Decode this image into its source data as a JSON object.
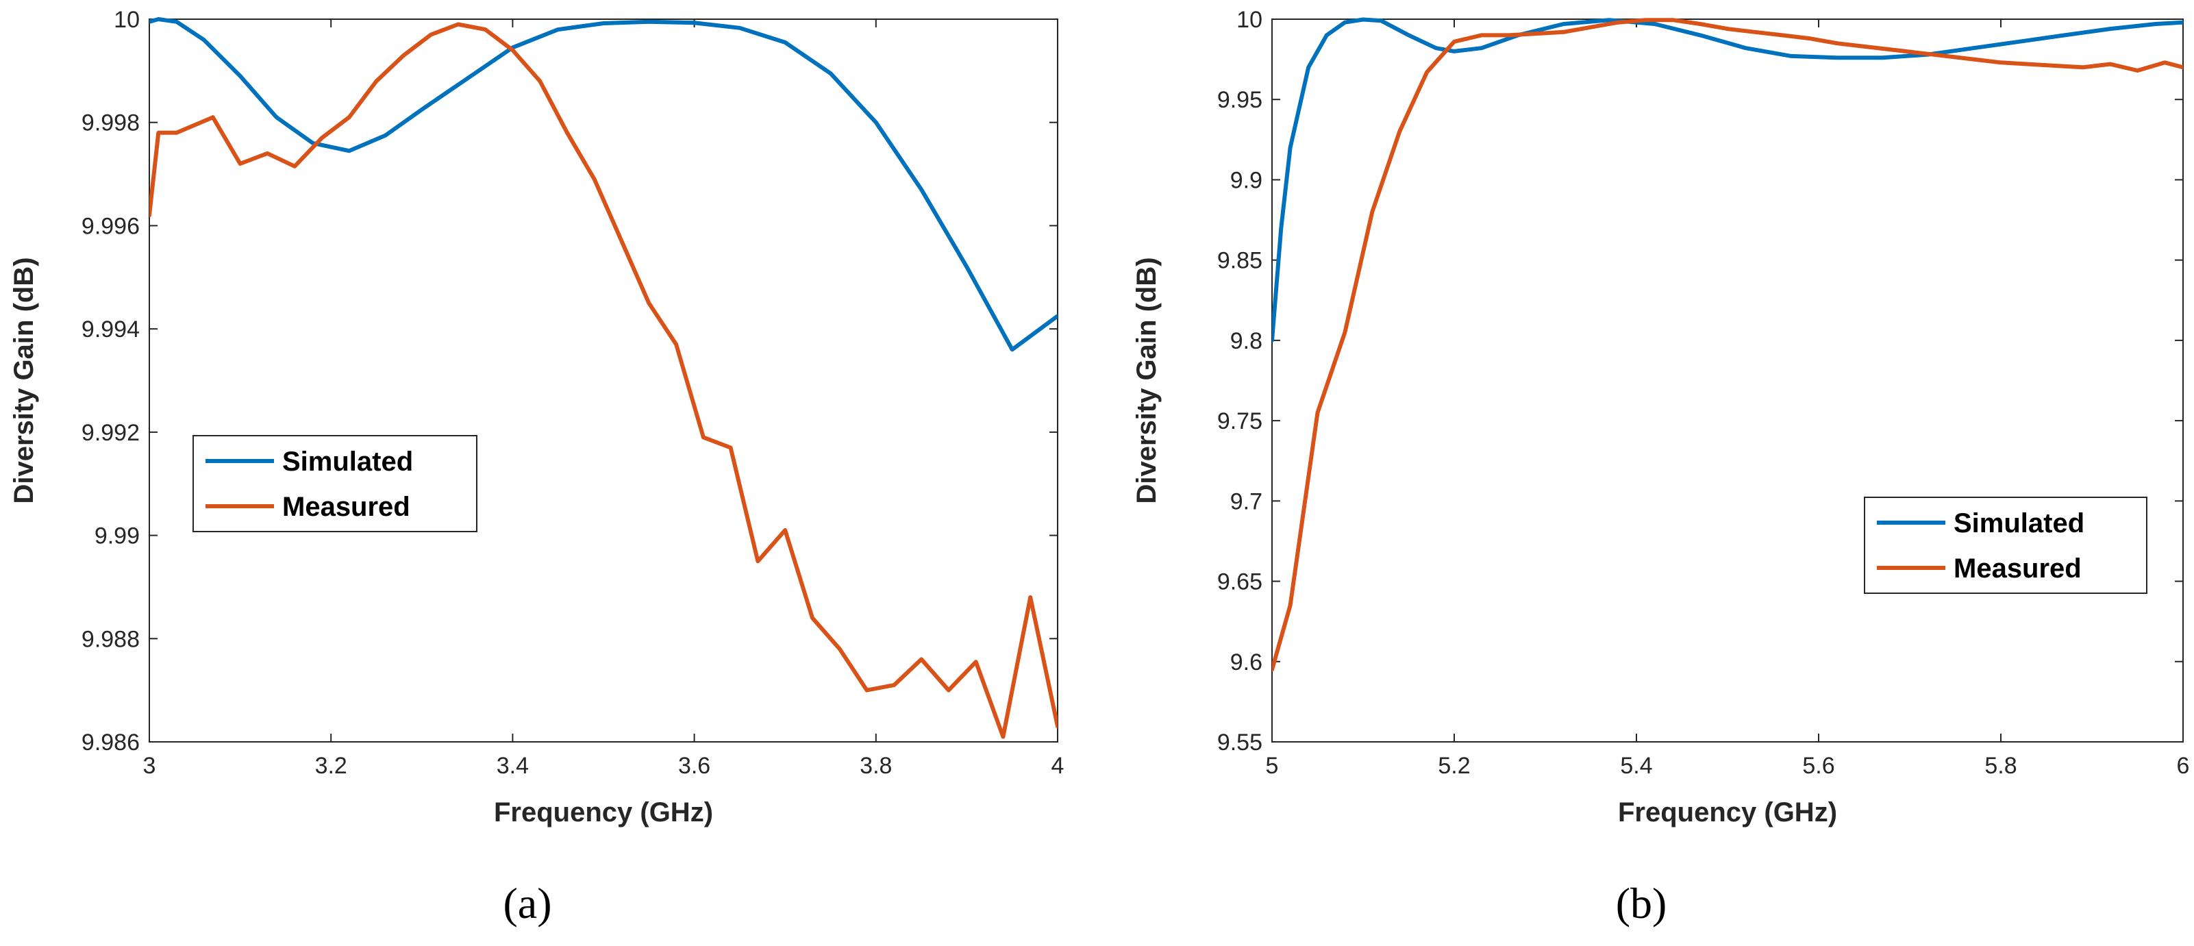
{
  "chart_data": [
    {
      "type": "line",
      "panel_label": "(a)",
      "xlabel": "Frequency (GHz)",
      "ylabel": "Diversity Gain (dB)",
      "xlim": [
        3,
        4
      ],
      "ylim": [
        9.986,
        10
      ],
      "xticks": [
        "3",
        "3.2",
        "3.4",
        "3.6",
        "3.8",
        "4"
      ],
      "yticks": [
        "9.986",
        "9.988",
        "9.99",
        "9.992",
        "9.994",
        "9.996",
        "9.998",
        "10"
      ],
      "legend": {
        "position": "middle-left",
        "entries": [
          "Simulated",
          "Measured"
        ]
      },
      "series": [
        {
          "name": "Simulated",
          "color": "#0072BD",
          "x": [
            3.0,
            3.01,
            3.03,
            3.06,
            3.1,
            3.14,
            3.18,
            3.22,
            3.26,
            3.3,
            3.35,
            3.4,
            3.45,
            3.5,
            3.55,
            3.6,
            3.65,
            3.7,
            3.75,
            3.8,
            3.85,
            3.9,
            3.95,
            4.0
          ],
          "y": [
            9.99995,
            10.0,
            9.99995,
            9.9996,
            9.9989,
            9.9981,
            9.9976,
            9.99745,
            9.99775,
            9.99825,
            9.99885,
            9.99945,
            9.9998,
            9.99992,
            9.99995,
            9.99993,
            9.99983,
            9.99955,
            9.99895,
            9.998,
            9.9967,
            9.9952,
            9.9936,
            9.99425
          ]
        },
        {
          "name": "Measured",
          "color": "#D95319",
          "x": [
            3.0,
            3.01,
            3.03,
            3.07,
            3.1,
            3.13,
            3.16,
            3.19,
            3.22,
            3.25,
            3.28,
            3.31,
            3.34,
            3.37,
            3.4,
            3.43,
            3.46,
            3.49,
            3.52,
            3.55,
            3.58,
            3.61,
            3.64,
            3.67,
            3.7,
            3.73,
            3.76,
            3.79,
            3.82,
            3.85,
            3.88,
            3.91,
            3.94,
            3.97,
            4.0
          ],
          "y": [
            9.9962,
            9.9978,
            9.9978,
            9.9981,
            9.9972,
            9.9974,
            9.99715,
            9.9977,
            9.9981,
            9.9988,
            9.9993,
            9.9997,
            9.9999,
            9.9998,
            9.9994,
            9.9988,
            9.9978,
            9.9969,
            9.9957,
            9.9945,
            9.9937,
            9.9919,
            9.9917,
            9.9895,
            9.9901,
            9.9884,
            9.9878,
            9.987,
            9.9871,
            9.9876,
            9.987,
            9.98755,
            9.9861,
            9.9888,
            9.9863
          ]
        }
      ]
    },
    {
      "type": "line",
      "panel_label": "(b)",
      "xlabel": "Frequency (GHz)",
      "ylabel": "Diversity Gain (dB)",
      "xlim": [
        5,
        6
      ],
      "ylim": [
        9.55,
        10
      ],
      "xticks": [
        "5",
        "5.2",
        "5.4",
        "5.6",
        "5.8",
        "6"
      ],
      "yticks": [
        "9.55",
        "9.6",
        "9.65",
        "9.7",
        "9.75",
        "9.8",
        "9.85",
        "9.9",
        "9.95",
        "10"
      ],
      "legend": {
        "position": "lower-right",
        "entries": [
          "Simulated",
          "Measured"
        ]
      },
      "series": [
        {
          "name": "Simulated",
          "color": "#0072BD",
          "x": [
            5.0,
            5.01,
            5.02,
            5.04,
            5.06,
            5.08,
            5.1,
            5.12,
            5.15,
            5.18,
            5.2,
            5.23,
            5.27,
            5.32,
            5.37,
            5.42,
            5.47,
            5.52,
            5.57,
            5.62,
            5.67,
            5.72,
            5.77,
            5.82,
            5.87,
            5.92,
            5.97,
            6.0
          ],
          "y": [
            9.8,
            9.87,
            9.92,
            9.97,
            9.99,
            9.998,
            9.9998,
            9.999,
            9.99,
            9.982,
            9.98,
            9.982,
            9.99,
            9.997,
            9.9995,
            9.997,
            9.99,
            9.982,
            9.977,
            9.976,
            9.976,
            9.978,
            9.982,
            9.986,
            9.99,
            9.994,
            9.997,
            9.998
          ]
        },
        {
          "name": "Measured",
          "color": "#D95319",
          "x": [
            5.0,
            5.02,
            5.05,
            5.08,
            5.11,
            5.14,
            5.17,
            5.2,
            5.23,
            5.26,
            5.29,
            5.32,
            5.35,
            5.38,
            5.41,
            5.44,
            5.47,
            5.5,
            5.53,
            5.56,
            5.59,
            5.62,
            5.65,
            5.68,
            5.71,
            5.74,
            5.77,
            5.8,
            5.83,
            5.86,
            5.89,
            5.92,
            5.95,
            5.98,
            6.0
          ],
          "y": [
            9.595,
            9.635,
            9.755,
            9.805,
            9.88,
            9.93,
            9.967,
            9.986,
            9.99,
            9.99,
            9.991,
            9.992,
            9.995,
            9.998,
            9.9995,
            9.9995,
            9.997,
            9.994,
            9.992,
            9.99,
            9.988,
            9.985,
            9.983,
            9.981,
            9.979,
            9.977,
            9.975,
            9.973,
            9.972,
            9.971,
            9.97,
            9.972,
            9.968,
            9.973,
            9.97
          ]
        }
      ]
    }
  ]
}
